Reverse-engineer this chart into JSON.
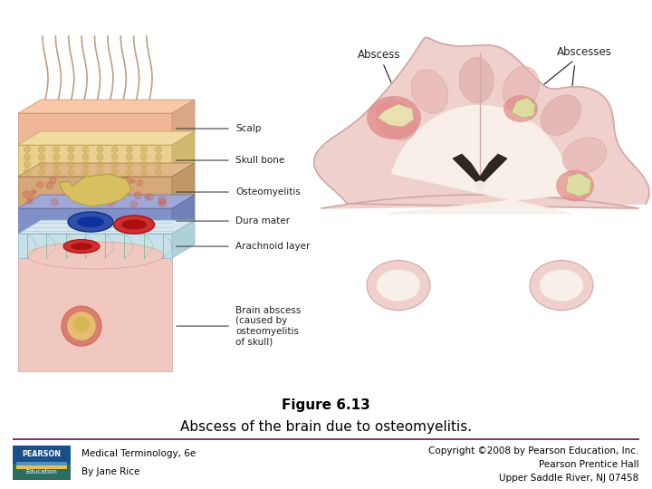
{
  "background_color": "#ffffff",
  "title_line1": "Figure 6.13",
  "title_line2": "Abscess of the brain due to osteomyelitis.",
  "title_fontsize": 11,
  "subtitle_fontsize": 11,
  "footer_left_line1": "Medical Terminology, 6e",
  "footer_left_line2": "By Jane Rice",
  "footer_right_line1": "Copyright ©2008 by Pearson Education, Inc.",
  "footer_right_line2": "Pearson Prentice Hall",
  "footer_right_line3": "Upper Saddle River, NJ 07458",
  "footer_fontsize": 7.5,
  "divider_color": "#7a3060",
  "left_labels": [
    "Scalp",
    "Skull bone",
    "Osteomyelitis",
    "Dura mater",
    "Arachnoid layer",
    "Brain abscess\n(caused by\nosteomyelitis\nof skull)"
  ],
  "right_label1": "Abscess",
  "right_label2": "Abscesses"
}
